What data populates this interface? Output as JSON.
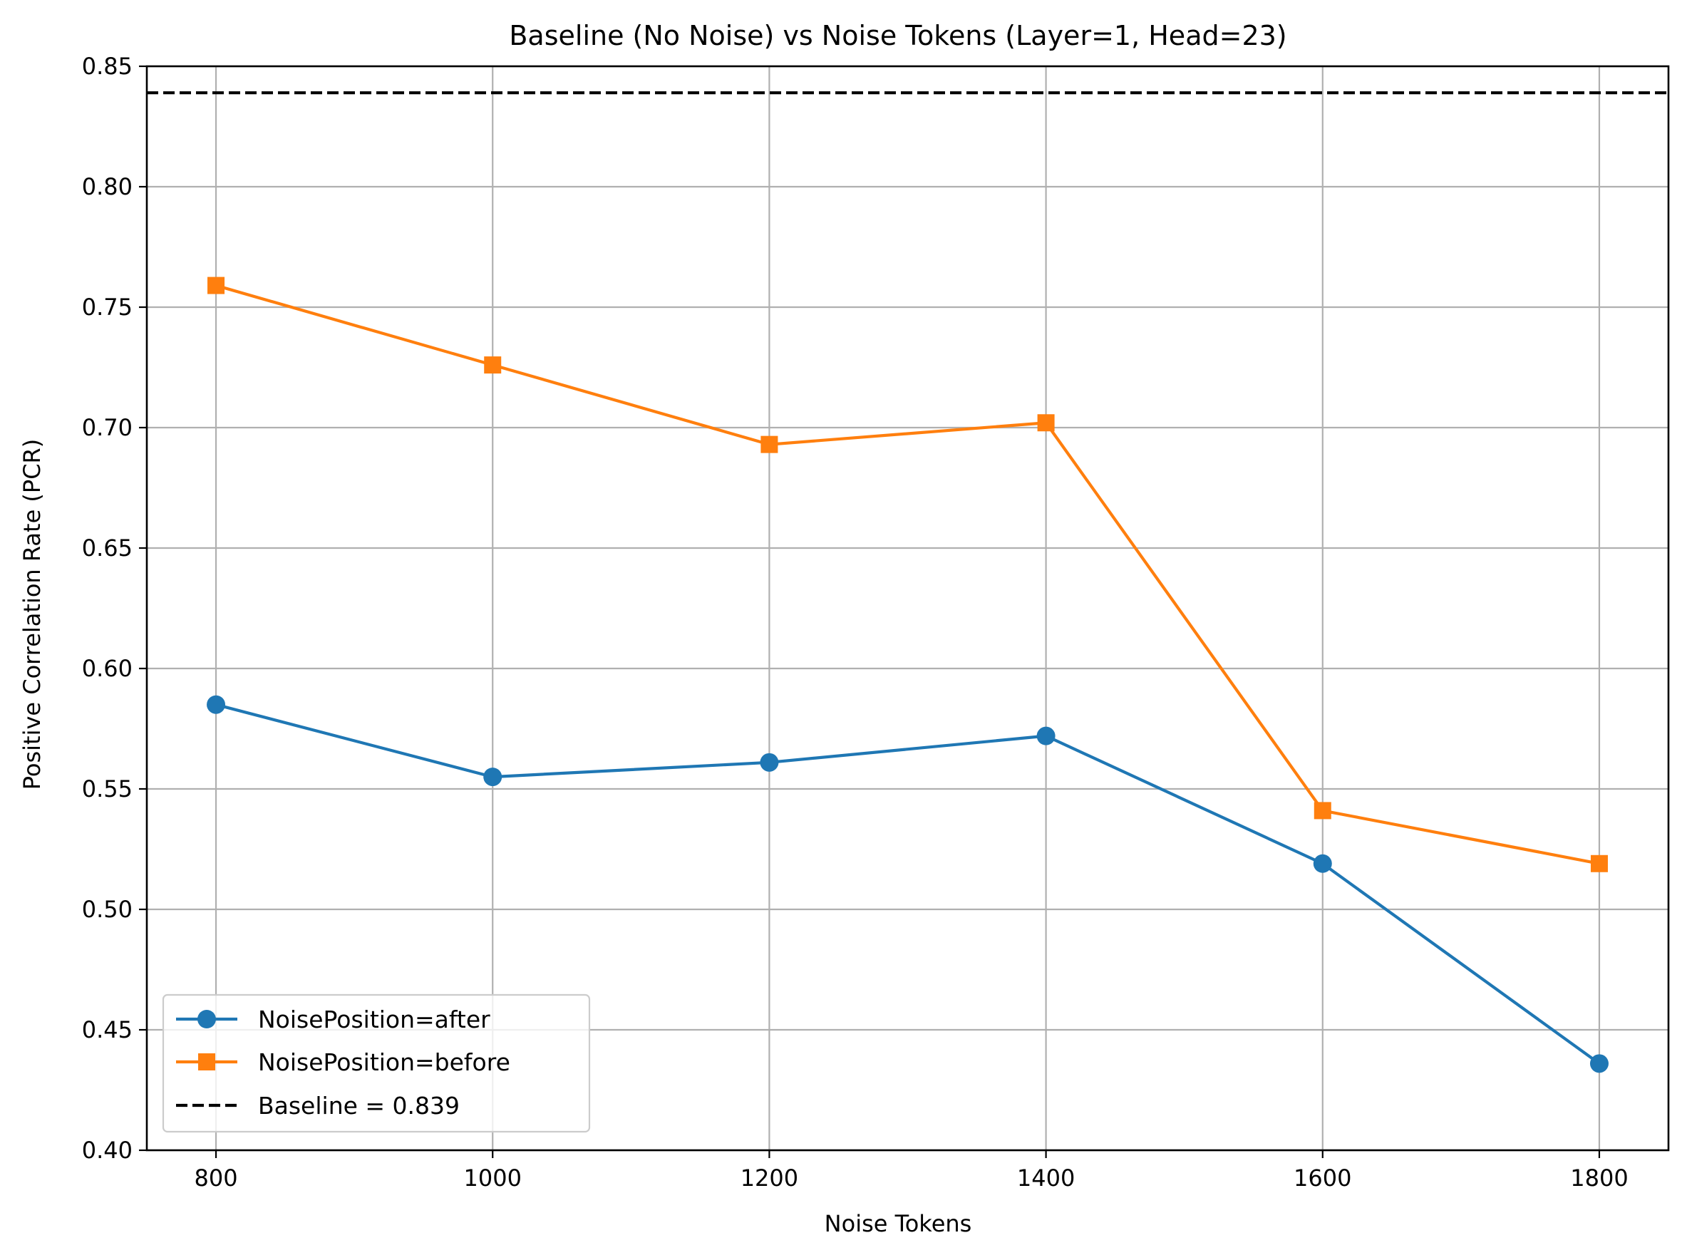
{
  "chart_data": {
    "type": "line",
    "title": "Baseline (No Noise) vs Noise Tokens (Layer=1, Head=23)",
    "xlabel": "Noise Tokens",
    "ylabel": "Positive Correlation Rate (PCR)",
    "x": [
      800,
      1000,
      1200,
      1400,
      1600,
      1800
    ],
    "x_ticks": [
      "800",
      "1000",
      "1200",
      "1400",
      "1600",
      "1800"
    ],
    "y_ticks": [
      "0.40",
      "0.45",
      "0.50",
      "0.55",
      "0.60",
      "0.65",
      "0.70",
      "0.75",
      "0.80",
      "0.85"
    ],
    "xlim": [
      750,
      1850
    ],
    "ylim": [
      0.4,
      0.85
    ],
    "grid": true,
    "legend_position": "lower-left",
    "series": [
      {
        "name": "NoisePosition=after",
        "values": [
          0.585,
          0.555,
          0.561,
          0.572,
          0.519,
          0.436
        ],
        "color": "#1f77b4",
        "marker": "circle"
      },
      {
        "name": "NoisePosition=before",
        "values": [
          0.759,
          0.726,
          0.693,
          0.702,
          0.541,
          0.519
        ],
        "color": "#ff7f0e",
        "marker": "square"
      }
    ],
    "baseline": {
      "name": "Baseline = 0.839",
      "value": 0.839,
      "color": "#000000",
      "style": "dashed"
    }
  }
}
